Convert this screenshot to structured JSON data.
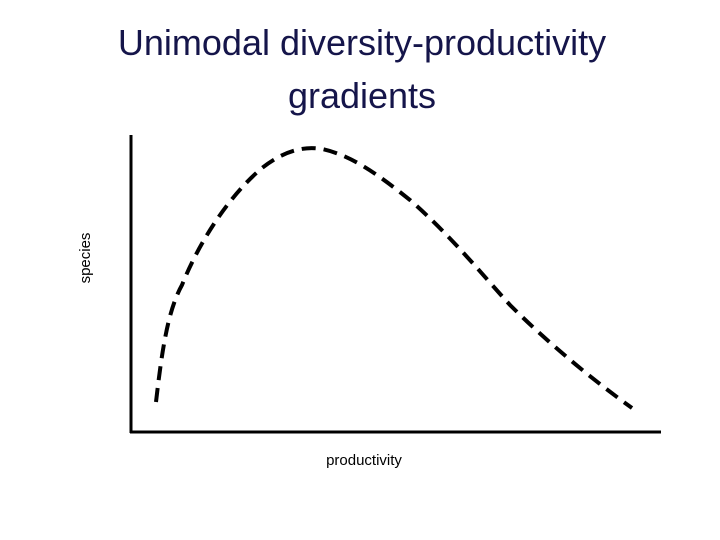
{
  "header": {
    "title_lines": [
      "Unimodal diversity-productivity",
      "gradients"
    ]
  },
  "axes": {
    "y_label": "species",
    "x_label": "productivity"
  }
}
